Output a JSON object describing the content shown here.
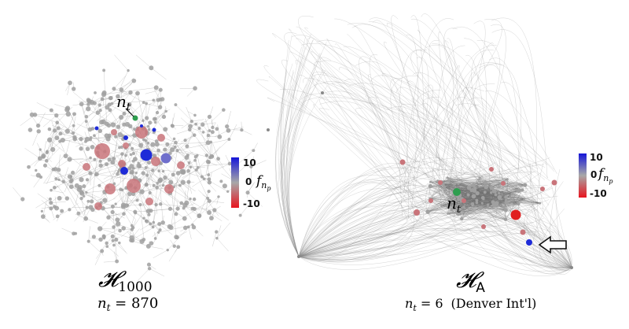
{
  "left_panel": {
    "graph_title": "𝓗",
    "graph_title_sub": "1000",
    "caption": "n",
    "caption_sub": "t",
    "caption_eq": " = 870",
    "node_label": "n",
    "node_label_sub": "t"
  },
  "right_panel": {
    "graph_title": "𝓗",
    "graph_title_sub": "A",
    "caption": "n",
    "caption_sub": "t",
    "caption_eq": " = 6",
    "caption_extra": "(Denver Int'l)",
    "node_label": "n",
    "node_label_sub": "t"
  },
  "colorbar": {
    "max_label": "10",
    "mid_label": "0",
    "min_label": "-10",
    "var_label": "f",
    "var_sub": "n",
    "var_subsub": "p",
    "colors": {
      "high": "#1515d8",
      "mid": "#a8a8a8",
      "low": "#e8151f"
    }
  },
  "colors": {
    "target_node": "#2e9e4f",
    "edge": "#8a8a8a",
    "node_gray": "#a0a0a0",
    "node_red": "#c9747a",
    "node_blue": "#1e2bd8"
  }
}
